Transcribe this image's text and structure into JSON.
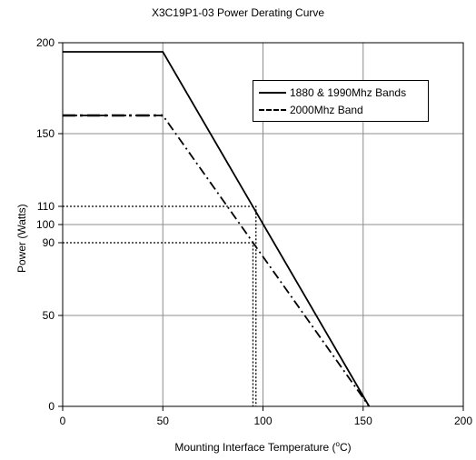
{
  "chart_data": {
    "type": "line",
    "title": "X3C19P1-03 Power Derating Curve",
    "xlabel_main": "Mounting Interface Temperature (",
    "xlabel_sup": "o",
    "xlabel_end": "C)",
    "ylabel": "Power (Watts)",
    "xlim": [
      0,
      200
    ],
    "ylim": [
      0,
      200
    ],
    "x_ticks": [
      0,
      50,
      100,
      150,
      200
    ],
    "x_tick_labels": [
      "0",
      "50",
      "100",
      "150",
      "200"
    ],
    "y_ticks": [
      0,
      50,
      90,
      100,
      110,
      150,
      200
    ],
    "y_tick_labels": [
      "0",
      "50",
      "90",
      "100",
      "110",
      "150",
      "200"
    ],
    "grid_x": [
      0,
      50,
      100,
      150,
      200
    ],
    "grid_y": [
      0,
      50,
      100,
      150,
      200
    ],
    "legend_placement": "upper-right",
    "series": [
      {
        "name": "1880 & 1990Mhz Bands",
        "style": "solid",
        "x": [
          0,
          50,
          153
        ],
        "y": [
          195,
          195,
          0
        ]
      },
      {
        "name": "2000Mhz Band",
        "style": "dash-dot",
        "x": [
          0,
          50,
          153
        ],
        "y": [
          160,
          160,
          0
        ]
      }
    ],
    "reference_lines": [
      {
        "style": "dotted",
        "x": [
          0,
          96.5,
          96.5
        ],
        "y": [
          110,
          110,
          0
        ]
      },
      {
        "style": "dotted",
        "x": [
          0,
          95,
          95
        ],
        "y": [
          90,
          90,
          0
        ]
      }
    ]
  }
}
